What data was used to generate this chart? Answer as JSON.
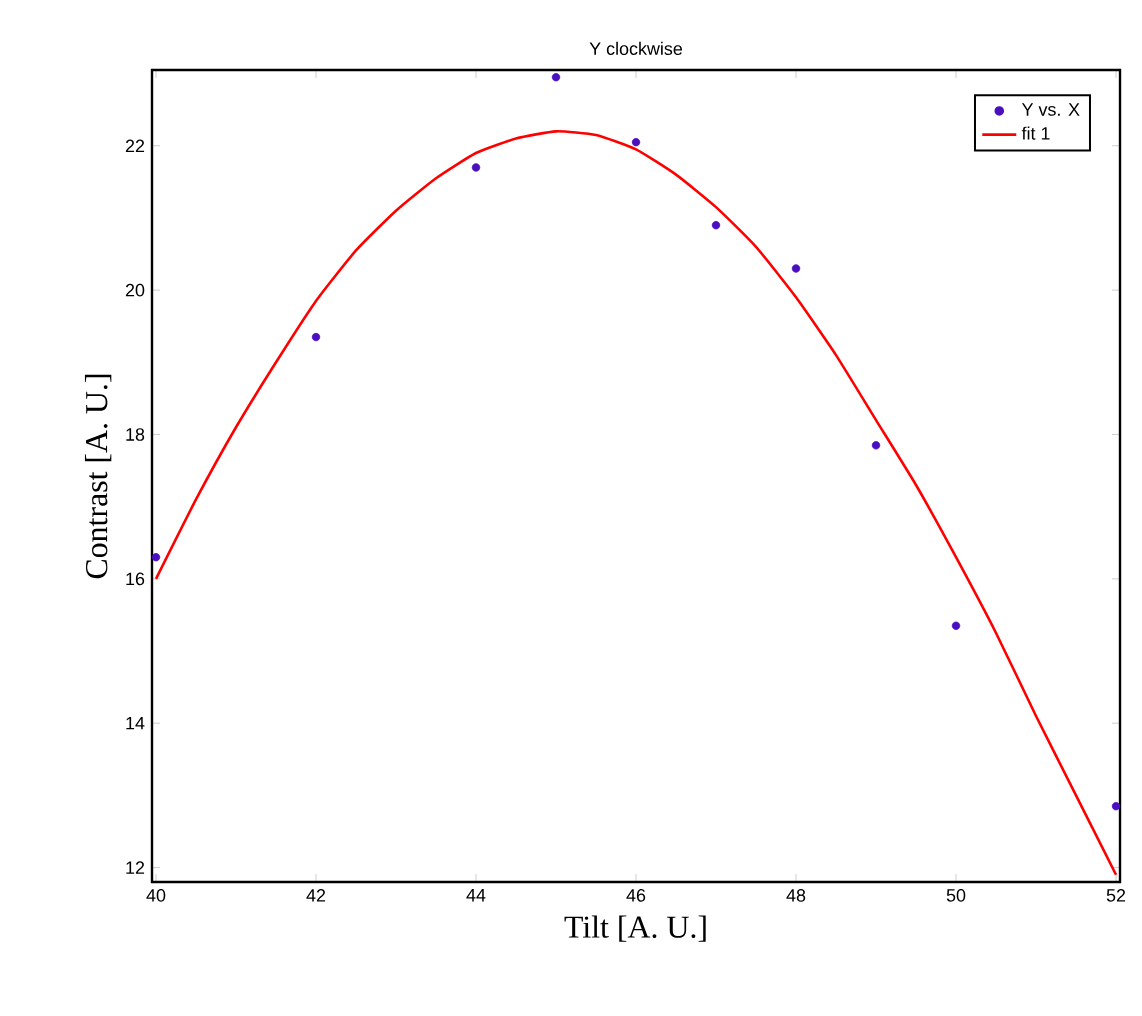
{
  "chart_data": {
    "type": "scatter",
    "title": "Y clockwise",
    "xlabel": "Tilt [A. U.]",
    "ylabel": "Contrast [A. U.]",
    "xlim": [
      39.95,
      52.05
    ],
    "ylim": [
      11.8,
      23.05
    ],
    "xticks": [
      40,
      42,
      44,
      46,
      48,
      50,
      52
    ],
    "yticks": [
      12,
      14,
      16,
      18,
      20,
      22
    ],
    "legend": "top right",
    "grid": false,
    "series": [
      {
        "name": "Y vs. X",
        "marker": "circle",
        "color": "#4b0fbf",
        "x": [
          40,
          42,
          44,
          45,
          46,
          47,
          48,
          49,
          50,
          52
        ],
        "values": [
          16.3,
          19.35,
          21.7,
          22.95,
          22.05,
          20.9,
          20.3,
          17.85,
          15.35,
          12.85
        ]
      },
      {
        "name": "fit 1",
        "type": "line",
        "color": "#ff0000",
        "marker": "none",
        "line_style": "solid",
        "x": [
          40,
          40.5,
          41,
          41.5,
          42,
          42.5,
          43,
          43.5,
          44,
          44.5,
          45,
          45.5,
          46,
          46.5,
          47,
          47.5,
          48,
          48.5,
          49,
          49.5,
          50,
          50.5,
          51,
          51.5,
          52
        ],
        "values": [
          16.0,
          17.1,
          18.1,
          19.0,
          19.85,
          20.55,
          21.1,
          21.55,
          21.9,
          22.1,
          22.2,
          22.15,
          21.95,
          21.6,
          21.15,
          20.6,
          19.9,
          19.1,
          18.2,
          17.3,
          16.3,
          15.25,
          14.1,
          13.0,
          11.9
        ]
      }
    ]
  }
}
